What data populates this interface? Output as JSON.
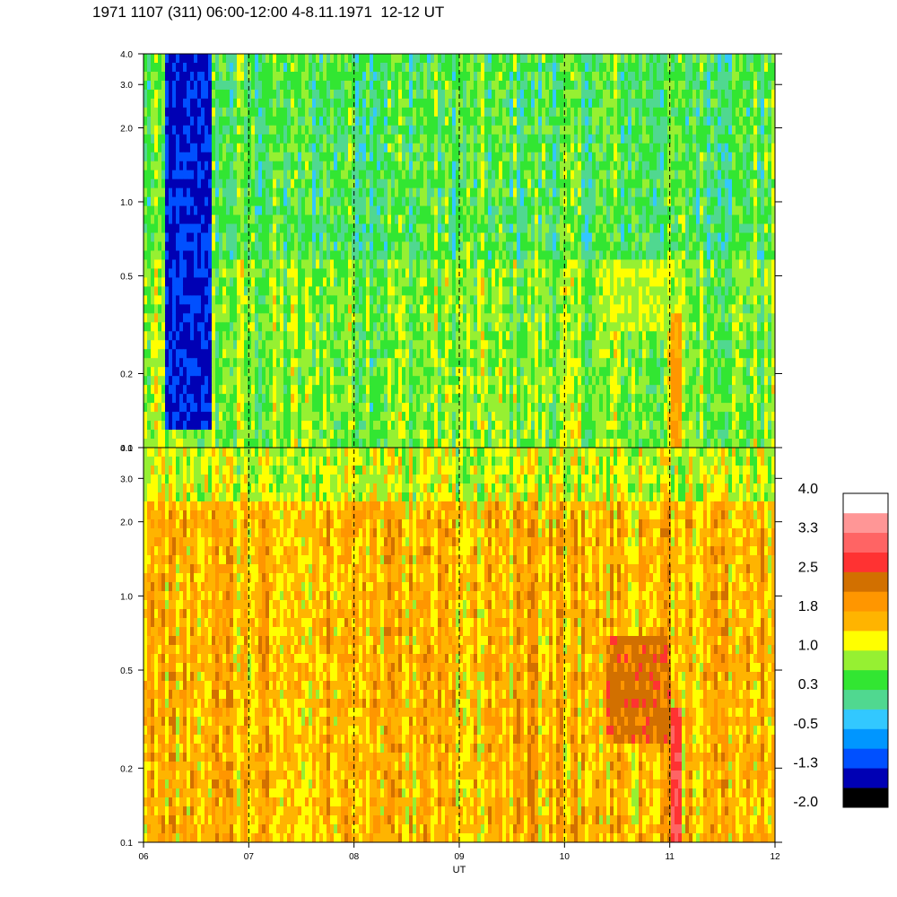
{
  "title": "1971 1107 (311) 06:00-12:00 4-8.11.1971  12-12 UT",
  "chart_data": {
    "type": "heatmap",
    "panels": [
      {
        "name": "",
        "y_scale": "log",
        "ylim": [
          0.1,
          4.0
        ],
        "ytick_labels": [
          "0.1",
          "0.2",
          "0.5",
          "1.0",
          "2.0",
          "3.0",
          "4.0"
        ],
        "ytick_values": [
          0.1,
          0.2,
          0.5,
          1.0,
          2.0,
          3.0,
          4.0
        ],
        "base_level": 0.4,
        "features": [
          {
            "x": [
              6.2,
              6.65
            ],
            "y": [
              0.12,
              4.0
            ],
            "level": -1.3
          },
          {
            "x": [
              10.4,
              11.0
            ],
            "y": [
              0.3,
              0.6
            ],
            "level": 1.0
          },
          {
            "x": [
              11.0,
              11.12
            ],
            "y": [
              0.1,
              0.35
            ],
            "level": 1.8
          }
        ]
      },
      {
        "name": "",
        "y_scale": "log",
        "ylim": [
          0.1,
          4.0
        ],
        "ytick_labels": [
          "0.1",
          "0.2",
          "0.5",
          "1.0",
          "2.0",
          "3.0",
          "4.0"
        ],
        "ytick_values": [
          0.1,
          0.2,
          0.5,
          1.0,
          2.0,
          3.0,
          4.0
        ],
        "base_level": 1.6,
        "features": [
          {
            "x": [
              10.4,
              11.0
            ],
            "y": [
              0.25,
              0.7
            ],
            "level": 2.3
          },
          {
            "x": [
              11.0,
              11.12
            ],
            "y": [
              0.1,
              0.35
            ],
            "level": 2.8
          }
        ]
      }
    ],
    "x_range": [
      6,
      12
    ],
    "xtick_labels": [
      "06",
      "07",
      "08",
      "09",
      "10",
      "11",
      "12"
    ],
    "xtick_values": [
      6,
      7,
      8,
      9,
      10,
      11,
      12
    ],
    "xlabel": "UT",
    "dashed_lines_x": [
      7,
      8,
      9,
      10,
      11
    ],
    "colorbar": {
      "labels": [
        "4.0",
        "3.3",
        "2.5",
        "1.8",
        "1.0",
        "0.3",
        "-0.5",
        "-1.3",
        "-2.0"
      ],
      "min": -2.0,
      "max": 4.0,
      "colors": [
        "#000000",
        "#0000b4",
        "#0050ff",
        "#0096ff",
        "#32c8ff",
        "#50d890",
        "#32e632",
        "#96f032",
        "#ffff00",
        "#ffb400",
        "#ff9600",
        "#d27000",
        "#ff3232",
        "#ff6464",
        "#ff9696",
        "#ffffff"
      ]
    },
    "grid": false,
    "legend": "colorbar right"
  }
}
